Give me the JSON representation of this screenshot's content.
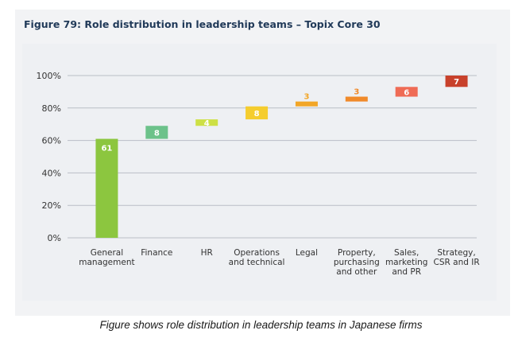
{
  "figure": {
    "title": "Figure 79: Role distribution in leadership teams – Topix Core 30",
    "caption": "Figure shows role distribution in leadership teams in Japanese firms"
  },
  "chart_data": {
    "type": "bar",
    "subtype": "waterfall",
    "title": "Figure 79: Role distribution in leadership teams – Topix Core 30",
    "xlabel": "",
    "ylabel": "",
    "ylim": [
      0,
      100
    ],
    "yticks": [
      "0%",
      "20%",
      "40%",
      "60%",
      "80%",
      "100%"
    ],
    "grid": true,
    "categories": [
      [
        "General",
        "management"
      ],
      [
        "Finance"
      ],
      [
        "HR"
      ],
      [
        "Operations",
        "and technical"
      ],
      [
        "Legal"
      ],
      [
        "Property,",
        "purchasing",
        "and other"
      ],
      [
        "Sales,",
        "marketing",
        "and PR"
      ],
      [
        "Strategy,",
        "CSR and IR"
      ]
    ],
    "values": [
      61,
      8,
      4,
      8,
      3,
      3,
      6,
      7
    ],
    "value_labels": [
      "61",
      "8",
      "4",
      "8",
      "3",
      "3",
      "6",
      "7"
    ],
    "colors": [
      "#8cc63f",
      "#6cc28a",
      "#cde045",
      "#f5cd2e",
      "#f2a627",
      "#f08a2a",
      "#ef6b55",
      "#c8412b"
    ],
    "label_colors": [
      "#ffffff",
      "#ffffff",
      "#ffffff",
      "#ffffff",
      "#f2a627",
      "#f08a2a",
      "#ffffff",
      "#ffffff"
    ]
  }
}
